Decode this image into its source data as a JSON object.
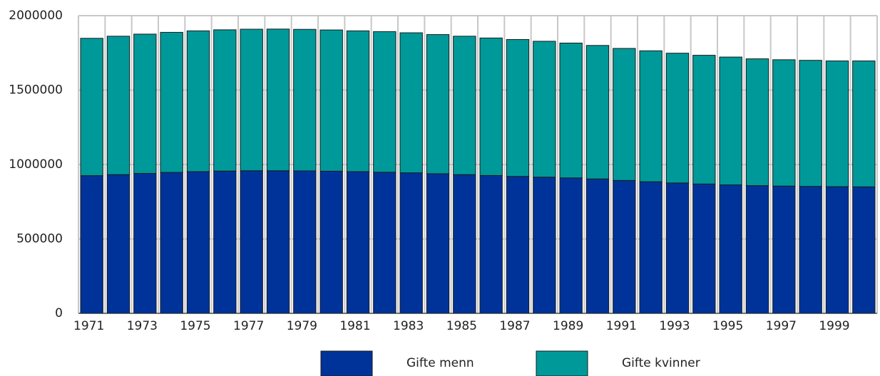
{
  "chart_data": {
    "type": "stacked_bar",
    "categories": [
      "1971",
      null,
      "1973",
      null,
      "1975",
      null,
      "1977",
      null,
      "1979",
      null,
      "1981",
      null,
      "1983",
      null,
      "1985",
      null,
      "1987",
      null,
      "1989",
      null,
      "1991",
      null,
      "1993",
      null,
      "1995",
      null,
      "1997",
      null,
      "1999",
      null
    ],
    "series": [
      {
        "name": "Gifte menn",
        "color": "#003399",
        "values": [
          925000,
          932000,
          940000,
          947000,
          952000,
          956000,
          958000,
          958000,
          957000,
          955000,
          952000,
          948000,
          944000,
          938000,
          932000,
          926000,
          920000,
          915000,
          910000,
          903000,
          893000,
          884000,
          876000,
          869000,
          863000,
          858000,
          855000,
          853000,
          851000,
          850000
        ]
      },
      {
        "name": "Gifte kvinner",
        "color": "#009999",
        "values": [
          923000,
          930000,
          936000,
          941000,
          946000,
          949000,
          951000,
          952000,
          951000,
          949000,
          946000,
          945000,
          941000,
          935000,
          930000,
          924000,
          920000,
          913000,
          906000,
          897000,
          887000,
          880000,
          872000,
          865000,
          859000,
          852000,
          849000,
          847000,
          845000,
          846000
        ]
      }
    ],
    "ylim": [
      0,
      2000000
    ],
    "yticks": [
      0,
      500000,
      1000000,
      1500000,
      2000000
    ],
    "grid": true
  }
}
